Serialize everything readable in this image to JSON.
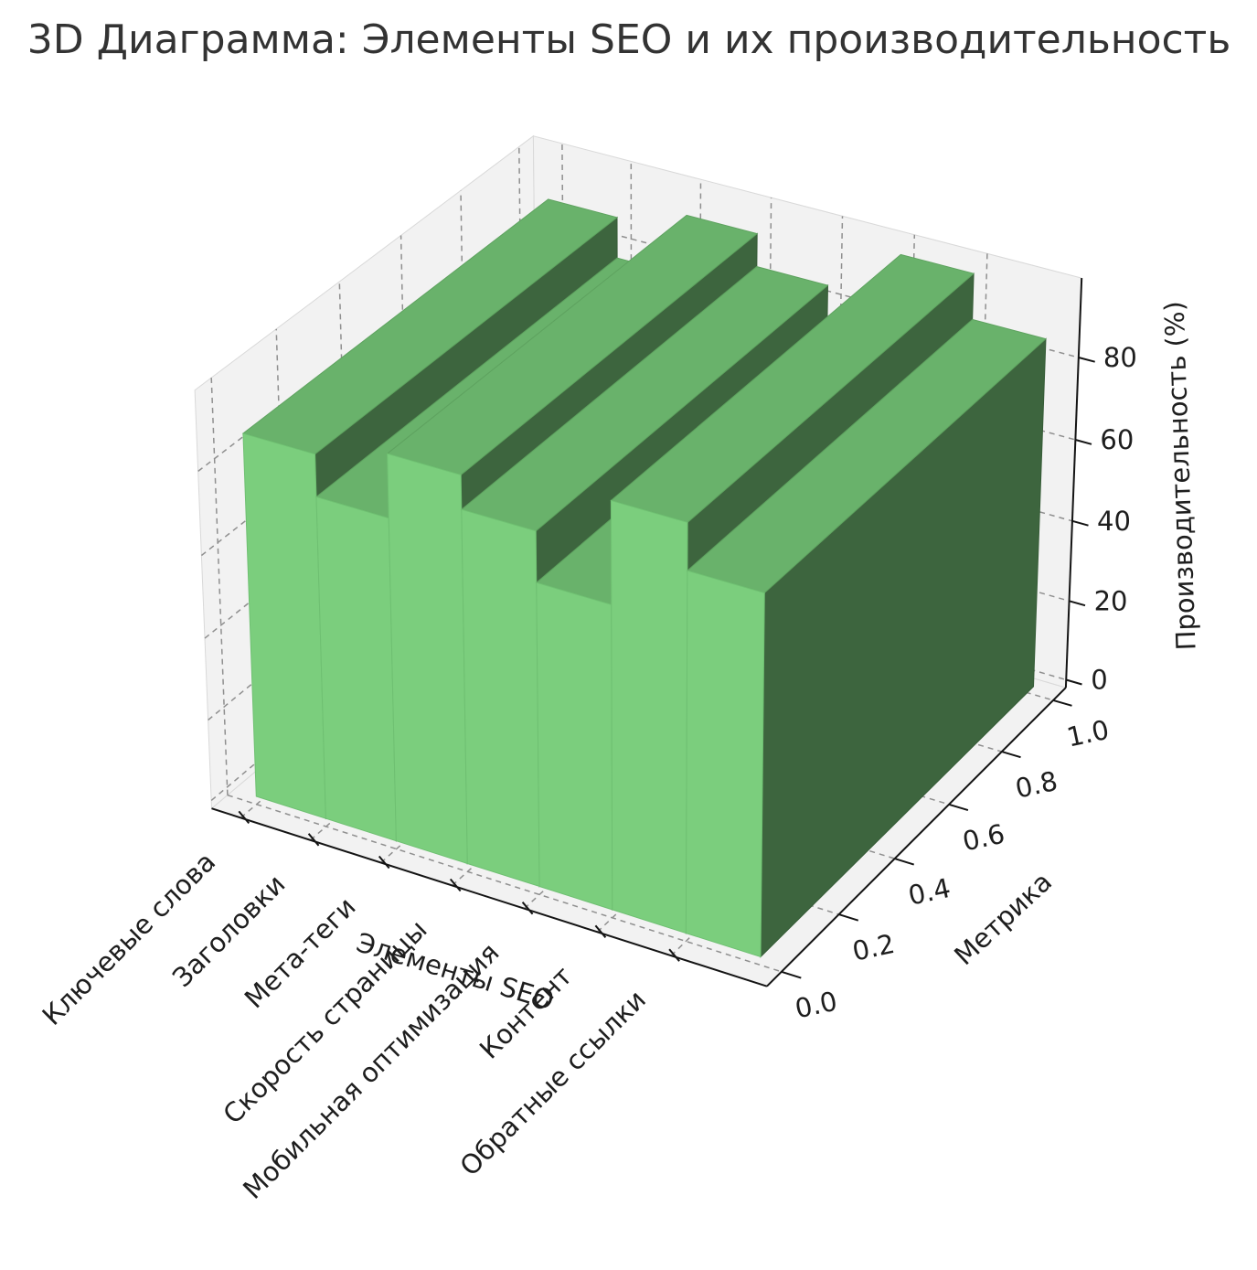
{
  "chart_data": {
    "type": "bar",
    "projection": "3d",
    "title": "3D Диаграмма: Элементы SEO и их производительность",
    "xlabel": "Элементы SEO",
    "ylabel": "Метрика",
    "zlabel": "Производительность (%)",
    "categories": [
      "Ключевые слова",
      "Заголовки",
      "Мета-теги",
      "Скорость страницы",
      "Мобильная оптимизация",
      "Контент",
      "Обратные ссылки"
    ],
    "values": [
      88,
      78,
      93,
      85,
      73,
      97,
      86
    ],
    "bar_depth_span": [
      0,
      1
    ],
    "yticks": [
      0.0,
      0.2,
      0.4,
      0.6,
      0.8,
      1.0
    ],
    "ytick_labels": [
      "0.0",
      "0.2",
      "0.4",
      "0.6",
      "0.8",
      "1.0"
    ],
    "zticks": [
      0,
      20,
      40,
      60,
      80
    ],
    "ztick_labels": [
      "0",
      "20",
      "40",
      "60",
      "80"
    ],
    "xlim": [
      -0.42,
      7.28
    ],
    "ylim": [
      -0.05,
      1.05
    ],
    "zlim": [
      -2,
      99
    ],
    "grid": true,
    "grid_style": "dashed",
    "legend": false,
    "view": {
      "elev": 30,
      "azim": -60,
      "dist": 10,
      "z_aspect": 0.75
    },
    "colors": {
      "bar_front": "#7bce7d",
      "bar_top": "#69b26b",
      "bar_side": "#3d653e",
      "bar_front_edge": "#6fc072",
      "bar_top_edge": "#5ea25f",
      "bar_side_edge": "#365c37",
      "pane": "#f2f2f2",
      "pane_edge": "#d9d9d9",
      "grid_line": "#8f8f8f",
      "axis_line": "#141414",
      "tick_text": "#1e1e1e",
      "title_text": "#333333",
      "background": "#ffffff"
    }
  }
}
